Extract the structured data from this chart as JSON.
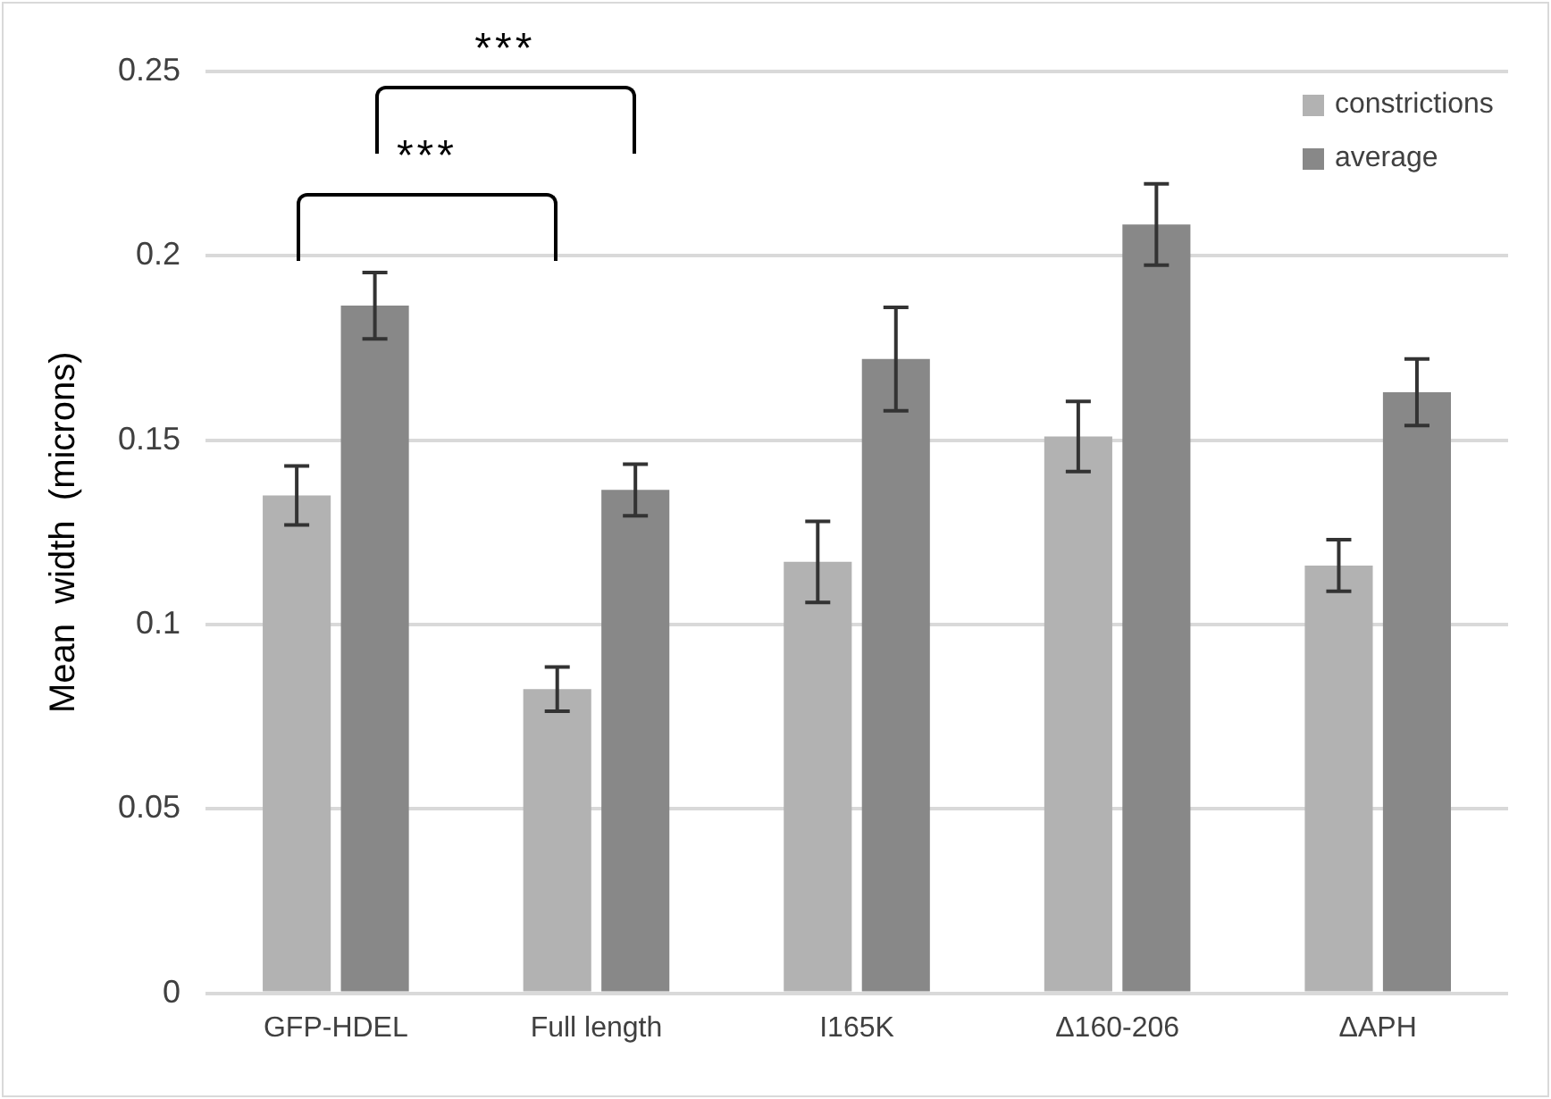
{
  "chart_data": {
    "type": "bar",
    "ylabel": "Mean  width  (microns)",
    "categories": [
      "GFP-HDEL",
      "Full length",
      "I165K",
      "Δ160-206",
      "ΔAPH"
    ],
    "series": [
      {
        "name": "constrictions",
        "color": "#b2b2b2",
        "values": [
          0.135,
          0.0825,
          0.117,
          0.151,
          0.116
        ],
        "errors": [
          0.008,
          0.006,
          0.011,
          0.0095,
          0.007
        ]
      },
      {
        "name": "average",
        "color": "#888888",
        "values": [
          0.1865,
          0.1365,
          0.172,
          0.2085,
          0.163
        ],
        "errors": [
          0.009,
          0.007,
          0.014,
          0.011,
          0.009
        ]
      }
    ],
    "ylim": [
      0,
      0.25
    ],
    "yticks": [
      0,
      0.05,
      0.1,
      0.15,
      0.2,
      0.25
    ],
    "grid": "y",
    "legend": "top right",
    "annotations": [
      "***",
      "***"
    ]
  }
}
